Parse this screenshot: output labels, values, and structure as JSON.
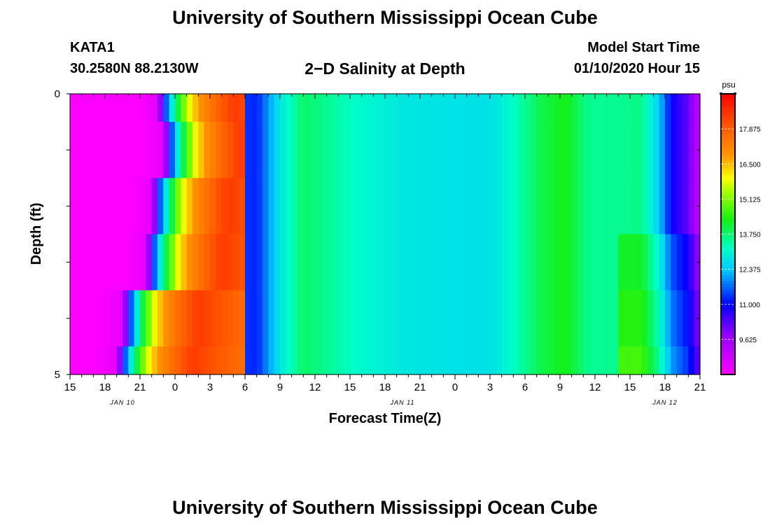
{
  "page": {
    "title_top": "University of Southern Mississippi Ocean Cube",
    "title_bottom": "University of Southern Mississippi Ocean Cube",
    "station": "KATA1",
    "coords": "30.2580N 88.2130W",
    "subtitle": "2−D Salinity at Depth",
    "model_label": "Model Start Time",
    "model_time": "01/10/2020 Hour 15"
  },
  "chart_data": {
    "type": "heatmap",
    "title": "2−D Salinity at Depth",
    "xlabel": "Forecast Time(Z)",
    "ylabel": "Depth (ft)",
    "units": "psu",
    "x_hours_start": 15,
    "x_hours_end": 69,
    "x_tick_labels": [
      "15",
      "18",
      "21",
      "0",
      "3",
      "6",
      "9",
      "12",
      "15",
      "18",
      "21",
      "0",
      "3",
      "6",
      "9",
      "12",
      "15",
      "18",
      "21"
    ],
    "date_labels": [
      {
        "text": "JAN 10",
        "hour": 19.5
      },
      {
        "text": "JAN 11",
        "hour": 43.5
      },
      {
        "text": "JAN 12",
        "hour": 66
      }
    ],
    "y_tick_labels": [
      "0",
      "5"
    ],
    "ylim": [
      0,
      5
    ],
    "colorbar": {
      "vmin": 8.25,
      "vmax": 19.25,
      "tick_values": [
        17.875,
        16.5,
        15.125,
        13.75,
        12.375,
        11.0,
        9.625
      ],
      "tick_labels": [
        "17.875",
        "16.500",
        "15.125",
        "13.750",
        "12.375",
        "11.000",
        "9.625"
      ]
    },
    "depth_bands": [
      {
        "depth": [
          0.0,
          0.5
        ],
        "transition_hour": 23.0
      },
      {
        "depth": [
          0.5,
          1.5
        ],
        "transition_hour": 23.5
      },
      {
        "depth": [
          1.5,
          2.5
        ],
        "transition_hour": 22.5
      },
      {
        "depth": [
          2.5,
          3.5
        ],
        "transition_hour": 22.0
      },
      {
        "depth": [
          3.5,
          4.5
        ],
        "transition_hour": 20.0
      },
      {
        "depth": [
          4.5,
          5.0
        ],
        "transition_hour": 19.5
      }
    ]
  }
}
